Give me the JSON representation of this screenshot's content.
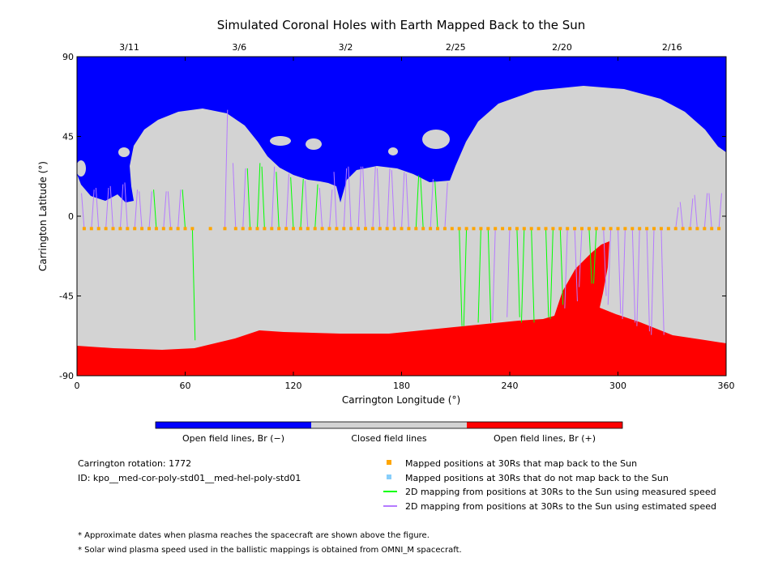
{
  "chart_data": {
    "type": "map",
    "title": "Simulated Coronal Holes with Earth Mapped Back to the Sun",
    "xlabel": "Carrington Longitude (°)",
    "ylabel": "Carrington Latitude (°)",
    "xlim": [
      0,
      360
    ],
    "ylim": [
      -90,
      90
    ],
    "x_ticks": [
      "0",
      "60",
      "120",
      "180",
      "240",
      "300",
      "360"
    ],
    "y_ticks": [
      "90",
      "45",
      "0",
      "-45",
      "-90"
    ],
    "top_date_ticks": [
      {
        "label": "3/11",
        "lon": 29
      },
      {
        "label": "3/6",
        "lon": 90
      },
      {
        "label": "3/2",
        "lon": 149
      },
      {
        "label": "2/25",
        "lon": 210
      },
      {
        "label": "2/20",
        "lon": 269
      },
      {
        "label": "2/16",
        "lon": 330
      }
    ],
    "colorbar": {
      "labels": [
        "Open field lines, Br (−)",
        "Closed field lines",
        "Open field lines, Br (+)"
      ],
      "colors": [
        "#0000ff",
        "#d3d3d3",
        "#ff0000"
      ]
    },
    "regions": {
      "negative_open_color": "#0000ff",
      "closed_color": "#d3d3d3",
      "positive_open_color": "#ff0000"
    },
    "earth_latitude": -7,
    "footpoint_lon_step": 4,
    "mapping_lines": [
      {
        "lon": 4,
        "lat": 13,
        "speed": "est"
      },
      {
        "lon": 8,
        "lat": 15,
        "speed": "est"
      },
      {
        "lon": 12,
        "lat": 16,
        "speed": "est"
      },
      {
        "lon": 16,
        "lat": 16,
        "speed": "est"
      },
      {
        "lon": 20,
        "lat": 17,
        "speed": "est"
      },
      {
        "lon": 24,
        "lat": 18,
        "speed": "est"
      },
      {
        "lon": 28,
        "lat": 19,
        "speed": "est"
      },
      {
        "lon": 32,
        "lat": 15,
        "speed": "est"
      },
      {
        "lon": 36,
        "lat": 14,
        "speed": "est"
      },
      {
        "lon": 40,
        "lat": 14,
        "speed": "est"
      },
      {
        "lon": 44,
        "lat": 15,
        "speed": "meas"
      },
      {
        "lon": 48,
        "lat": 14,
        "speed": "est"
      },
      {
        "lon": 52,
        "lat": 14,
        "speed": "est"
      },
      {
        "lon": 56,
        "lat": 15,
        "speed": "est"
      },
      {
        "lon": 60,
        "lat": 15,
        "speed": "meas"
      },
      {
        "lon": 64,
        "lat": -70,
        "speed": "meas"
      },
      {
        "lon": 74,
        "lat": -7,
        "speed": "none"
      },
      {
        "lon": 82,
        "lat": 60,
        "speed": "est"
      },
      {
        "lon": 88,
        "lat": 30,
        "speed": "est"
      },
      {
        "lon": 92,
        "lat": 27,
        "speed": "est"
      },
      {
        "lon": 96,
        "lat": 27,
        "speed": "meas"
      },
      {
        "lon": 100,
        "lat": 30,
        "speed": "meas"
      },
      {
        "lon": 104,
        "lat": 28,
        "speed": "meas"
      },
      {
        "lon": 108,
        "lat": 28,
        "speed": "est"
      },
      {
        "lon": 112,
        "lat": 25,
        "speed": "meas"
      },
      {
        "lon": 116,
        "lat": 24,
        "speed": "est"
      },
      {
        "lon": 120,
        "lat": 22,
        "speed": "meas"
      },
      {
        "lon": 124,
        "lat": 21,
        "speed": "meas"
      },
      {
        "lon": 128,
        "lat": 20,
        "speed": "est"
      },
      {
        "lon": 132,
        "lat": 18,
        "speed": "meas"
      },
      {
        "lon": 136,
        "lat": 16,
        "speed": "est"
      },
      {
        "lon": 140,
        "lat": 15,
        "speed": "est"
      },
      {
        "lon": 144,
        "lat": 25,
        "speed": "est"
      },
      {
        "lon": 148,
        "lat": 27,
        "speed": "est"
      },
      {
        "lon": 152,
        "lat": 28,
        "speed": "est"
      },
      {
        "lon": 156,
        "lat": 28,
        "speed": "est"
      },
      {
        "lon": 160,
        "lat": 28,
        "speed": "est"
      },
      {
        "lon": 164,
        "lat": 28,
        "speed": "est"
      },
      {
        "lon": 168,
        "lat": 27,
        "speed": "est"
      },
      {
        "lon": 172,
        "lat": 27,
        "speed": "est"
      },
      {
        "lon": 176,
        "lat": 26,
        "speed": "est"
      },
      {
        "lon": 180,
        "lat": 25,
        "speed": "est"
      },
      {
        "lon": 184,
        "lat": 24,
        "speed": "est"
      },
      {
        "lon": 188,
        "lat": 23,
        "speed": "meas"
      },
      {
        "lon": 192,
        "lat": 22,
        "speed": "meas"
      },
      {
        "lon": 196,
        "lat": 21,
        "speed": "est"
      },
      {
        "lon": 200,
        "lat": 20,
        "speed": "meas"
      },
      {
        "lon": 204,
        "lat": 19,
        "speed": "est"
      },
      {
        "lon": 208,
        "lat": -7,
        "speed": "none"
      },
      {
        "lon": 212,
        "lat": -62,
        "speed": "meas"
      },
      {
        "lon": 216,
        "lat": -62,
        "speed": "meas"
      },
      {
        "lon": 220,
        "lat": -7,
        "speed": "none"
      },
      {
        "lon": 224,
        "lat": -60,
        "speed": "meas"
      },
      {
        "lon": 228,
        "lat": -60,
        "speed": "meas"
      },
      {
        "lon": 232,
        "lat": -59,
        "speed": "est"
      },
      {
        "lon": 236,
        "lat": -7,
        "speed": "none"
      },
      {
        "lon": 240,
        "lat": -57,
        "speed": "est"
      },
      {
        "lon": 244,
        "lat": -57,
        "speed": "meas"
      },
      {
        "lon": 248,
        "lat": -60,
        "speed": "meas"
      },
      {
        "lon": 252,
        "lat": -60,
        "speed": "meas"
      },
      {
        "lon": 256,
        "lat": -7,
        "speed": "none"
      },
      {
        "lon": 260,
        "lat": -57,
        "speed": "meas"
      },
      {
        "lon": 264,
        "lat": -58,
        "speed": "meas"
      },
      {
        "lon": 268,
        "lat": -50,
        "speed": "meas"
      },
      {
        "lon": 272,
        "lat": -52,
        "speed": "est"
      },
      {
        "lon": 276,
        "lat": -48,
        "speed": "est"
      },
      {
        "lon": 280,
        "lat": -40,
        "speed": "est"
      },
      {
        "lon": 284,
        "lat": -38,
        "speed": "meas"
      },
      {
        "lon": 288,
        "lat": -38,
        "speed": "meas"
      },
      {
        "lon": 292,
        "lat": -45,
        "speed": "est"
      },
      {
        "lon": 296,
        "lat": -50,
        "speed": "est"
      },
      {
        "lon": 300,
        "lat": -55,
        "speed": "est"
      },
      {
        "lon": 304,
        "lat": -58,
        "speed": "est"
      },
      {
        "lon": 308,
        "lat": -60,
        "speed": "est"
      },
      {
        "lon": 312,
        "lat": -62,
        "speed": "est"
      },
      {
        "lon": 316,
        "lat": -65,
        "speed": "est"
      },
      {
        "lon": 320,
        "lat": -67,
        "speed": "est"
      },
      {
        "lon": 324,
        "lat": -67,
        "speed": "est"
      },
      {
        "lon": 328,
        "lat": -7,
        "speed": "none"
      },
      {
        "lon": 332,
        "lat": 5,
        "speed": "est"
      },
      {
        "lon": 336,
        "lat": 8,
        "speed": "est"
      },
      {
        "lon": 340,
        "lat": 10,
        "speed": "est"
      },
      {
        "lon": 344,
        "lat": 12,
        "speed": "est"
      },
      {
        "lon": 348,
        "lat": 13,
        "speed": "est"
      },
      {
        "lon": 352,
        "lat": 13,
        "speed": "est"
      },
      {
        "lon": 356,
        "lat": 13,
        "speed": "est"
      }
    ]
  },
  "legend": {
    "orange_label": "Mapped positions at 30Rs that map back to the Sun",
    "blue_label": "Mapped positions at 30Rs that do not map back to the Sun",
    "green_label": "2D mapping from positions at 30Rs to the Sun using measured speed",
    "purple_label": "2D mapping from positions at 30Rs to the Sun using estimated speed",
    "orange_color": "#ffa500",
    "blue_color": "#87cefa",
    "green_color": "#00ff00",
    "purple_color": "#b57aff"
  },
  "info": {
    "rotation": "Carrington rotation: 1772",
    "id": "ID: kpo__med-cor-poly-std01__med-hel-poly-std01"
  },
  "notes": [
    "* Approximate dates when plasma reaches the spacecraft are shown above the figure.",
    "* Solar wind plasma speed used in the ballistic mappings is obtained from OMNI_M spacecraft."
  ]
}
